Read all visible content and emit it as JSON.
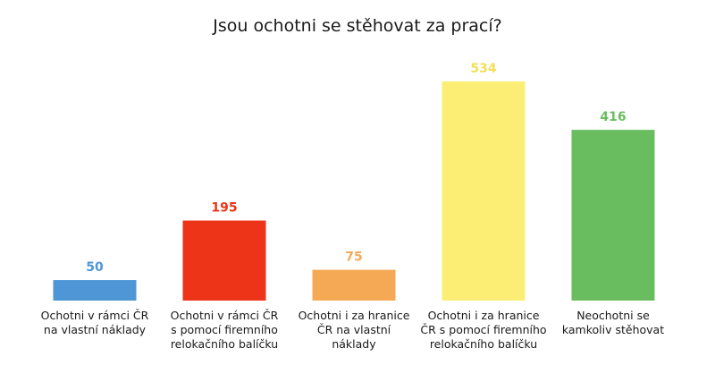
{
  "chart_data": {
    "type": "bar",
    "title": "Jsou ochotni se stěhovat za prací?",
    "xlabel": "",
    "ylabel": "",
    "ylim": [
      0,
      534
    ],
    "grid": false,
    "legend": "none",
    "categories": [
      [
        "Ochotni v rámci ČR",
        "na vlastní náklady"
      ],
      [
        "Ochotni v rámci ČR",
        "s pomocí firemního",
        "relokačního balíčku"
      ],
      [
        "Ochotni i za hranice",
        "ČR na vlastní",
        "náklady"
      ],
      [
        "Ochotni i za hranice",
        "ČR s pomocí firemního",
        "relokačního balíčku"
      ],
      [
        "Neochotni se",
        "kamkoliv stěhovat"
      ]
    ],
    "values": [
      50,
      195,
      75,
      534,
      416
    ],
    "colors": [
      "#4e96d6",
      "#ee3418",
      "#f5a955",
      "#fcee74",
      "#69bd5f"
    ],
    "label_colors": [
      "#4e96d6",
      "#ee3418",
      "#f5a955",
      "#f2df56",
      "#69bd5f"
    ]
  }
}
